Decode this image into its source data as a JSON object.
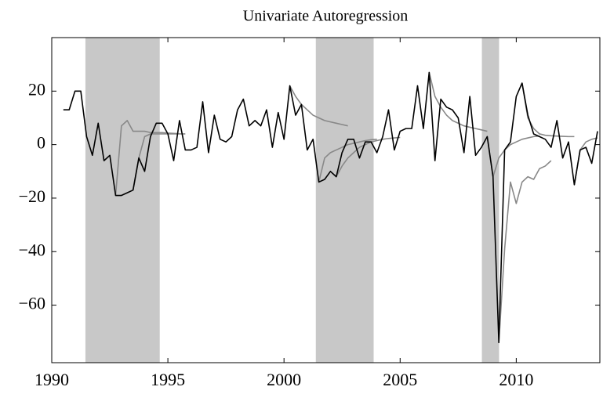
{
  "chart_data": {
    "type": "line",
    "title": "Univariate Autoregression",
    "xlim": [
      1990,
      2013.6
    ],
    "xticks": [
      1990,
      1995,
      2000,
      2005,
      2010
    ],
    "ylim": [
      -81.5,
      40
    ],
    "yticks": [
      {
        "value": -60,
        "label": "−60"
      },
      {
        "value": -40,
        "label": "−40"
      },
      {
        "value": -20,
        "label": "−20"
      },
      0,
      20
    ],
    "shaded_regions": [
      [
        1991.45,
        1994.65
      ],
      [
        2001.37,
        2003.86
      ],
      [
        2008.52,
        2009.26
      ]
    ],
    "shade_color": "#c8c8c8",
    "series": [
      {
        "color": "#888888",
        "x": [
          1992.75,
          1993,
          1993.25,
          1993.5,
          1993.75,
          1994,
          1994.25,
          1994.5,
          1994.75,
          1995,
          1995.25,
          1995.5
        ],
        "values": [
          -19,
          7,
          9,
          5,
          5,
          5,
          4.5,
          4.5,
          4.5,
          4.3,
          4.2,
          4.1
        ]
      },
      {
        "color": "#888888",
        "x": [
          1993.5,
          1993.75,
          1994,
          1994.25,
          1994.5,
          1994.75,
          1995,
          1995.25,
          1995.5,
          1995.75
        ],
        "values": [
          -17,
          -5,
          3,
          4,
          4,
          4,
          4,
          4,
          4,
          4
        ]
      },
      {
        "color": "#888888",
        "x": [
          2000.25,
          2000.5,
          2000.75,
          2001,
          2001.25,
          2001.5,
          2001.75,
          2002,
          2002.25,
          2002.5,
          2002.75
        ],
        "values": [
          22,
          18,
          15,
          13,
          11,
          10,
          9,
          8.5,
          8,
          7.5,
          7
        ]
      },
      {
        "color": "#888888",
        "x": [
          2001.5,
          2001.75,
          2002,
          2002.25,
          2002.5,
          2002.75,
          2003,
          2003.25,
          2003.5,
          2003.75,
          2004
        ],
        "values": [
          -14,
          -5,
          -3,
          -2,
          -1,
          0,
          0.5,
          1,
          1.5,
          1.8,
          2
        ]
      },
      {
        "color": "#888888",
        "x": [
          2002.25,
          2002.5,
          2002.75,
          2003,
          2003.25,
          2003.5,
          2003.75,
          2004,
          2004.25,
          2004.5,
          2004.75,
          2005
        ],
        "values": [
          -12,
          -8,
          -5,
          -3,
          -1,
          0,
          1,
          1.5,
          2,
          2.3,
          2.5,
          2.7
        ]
      },
      {
        "color": "#888888",
        "x": [
          2006.25,
          2006.5,
          2006.75,
          2007,
          2007.25,
          2007.5,
          2007.75,
          2008,
          2008.25,
          2008.5,
          2008.75
        ],
        "values": [
          27,
          18,
          14,
          11,
          9,
          8,
          7,
          6.5,
          6,
          5.5,
          5
        ]
      },
      {
        "color": "#888888",
        "x": [
          2008.75,
          2009,
          2009.25,
          2009.5,
          2009.75,
          2010,
          2010.25,
          2010.5,
          2010.75,
          2011
        ],
        "values": [
          3,
          -12,
          -5,
          -2,
          0,
          1,
          2,
          2.5,
          3,
          3.2
        ]
      },
      {
        "color": "#888888",
        "x": [
          2009.25,
          2009.5,
          2009.75,
          2010,
          2010.25,
          2010.5,
          2010.75,
          2011,
          2011.25,
          2011.5
        ],
        "values": [
          -74,
          -39,
          -14,
          -22,
          -14,
          -12,
          -13,
          -9,
          -8,
          -6
        ]
      },
      {
        "color": "#888888",
        "x": [
          2010.25,
          2010.5,
          2010.75,
          2011,
          2011.25,
          2011.5,
          2011.75,
          2012,
          2012.25,
          2012.5
        ],
        "values": [
          23,
          10,
          6,
          4,
          3.5,
          3.3,
          3.2,
          3.1,
          3,
          3
        ]
      },
      {
        "color": "#888888",
        "x": [
          2012.5,
          2012.75,
          2013,
          2013.25,
          2013.5
        ],
        "values": [
          -15,
          -2,
          1,
          2,
          2.5
        ]
      },
      {
        "color": "#000000",
        "x": [
          1990.5,
          1990.75,
          1991,
          1991.25,
          1991.5,
          1991.75,
          1992,
          1992.25,
          1992.5,
          1992.75,
          1993,
          1993.25,
          1993.5,
          1993.75,
          1994,
          1994.25,
          1994.5,
          1994.75,
          1995,
          1995.25,
          1995.5,
          1995.75,
          1996,
          1996.25,
          1996.5,
          1996.75,
          1997,
          1997.25,
          1997.5,
          1997.75,
          1998,
          1998.25,
          1998.5,
          1998.75,
          1999,
          1999.25,
          1999.5,
          1999.75,
          2000,
          2000.25,
          2000.5,
          2000.75,
          2001,
          2001.25,
          2001.5,
          2001.75,
          2002,
          2002.25,
          2002.5,
          2002.75,
          2003,
          2003.25,
          2003.5,
          2003.75,
          2004,
          2004.25,
          2004.5,
          2004.75,
          2005,
          2005.25,
          2005.5,
          2005.75,
          2006,
          2006.25,
          2006.5,
          2006.75,
          2007,
          2007.25,
          2007.5,
          2007.75,
          2008,
          2008.25,
          2008.5,
          2008.75,
          2009,
          2009.25,
          2009.5,
          2009.75,
          2010,
          2010.25,
          2010.5,
          2010.75,
          2011,
          2011.25,
          2011.5,
          2011.75,
          2012,
          2012.25,
          2012.5,
          2012.75,
          2013,
          2013.25,
          2013.5
        ],
        "values": [
          13,
          13,
          20,
          20,
          3,
          -4,
          8,
          -6,
          -4,
          -19,
          -19,
          -18,
          -17,
          -5,
          -10,
          3,
          8,
          8,
          4,
          -6,
          9,
          -2,
          -2,
          -1,
          16,
          -3,
          11,
          2,
          1,
          3,
          13,
          17,
          7,
          9,
          7,
          13,
          -1,
          12,
          2,
          22,
          11,
          15,
          -2,
          2,
          -14,
          -13,
          -10,
          -12,
          -3,
          2,
          2,
          -5,
          1,
          1,
          -3,
          3,
          13,
          -2,
          5,
          6,
          6,
          22,
          6,
          27,
          -6,
          17,
          14,
          13,
          10,
          -3,
          18,
          -4,
          -1,
          3,
          -12,
          -74,
          -2,
          1,
          18,
          23,
          11,
          4,
          3,
          2,
          -1,
          9,
          -5,
          1,
          -15,
          -2,
          -1,
          -7,
          5
        ]
      }
    ]
  }
}
